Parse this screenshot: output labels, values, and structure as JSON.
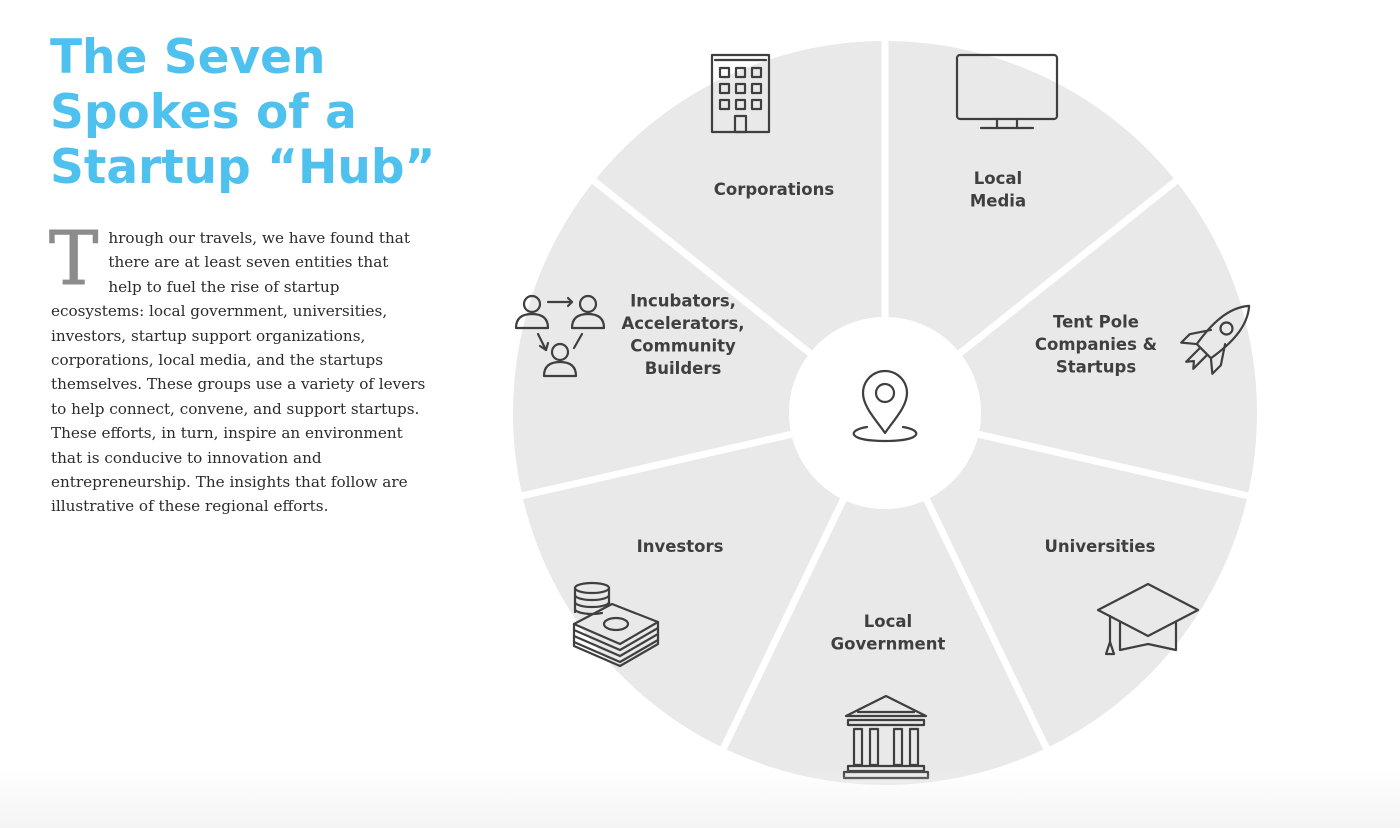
{
  "title": {
    "lines": [
      "The Seven",
      "Spokes of a",
      "Startup “Hub”"
    ]
  },
  "intro": {
    "dropcap": "T",
    "text": "hrough our travels, we have found that there are at least seven entities that help to fuel the rise of startup ecosystems: local government, universities, investors, startup support organizations, corporations, local media, and the startups themselves. These groups use a variety of levers to help connect, convene, and support startups. These efforts, in turn, inspire an environment that is conducive to innovation and entrepreneurship. The insights that follow are illustrative of these regional efforts."
  },
  "wheel": {
    "segment_color": "#e9e9e9",
    "hub_icon": "location-pin-icon",
    "segments": [
      {
        "label_lines": [
          "Corporations"
        ],
        "icon": "office-building-icon"
      },
      {
        "label_lines": [
          "Local",
          "Media"
        ],
        "icon": "television-icon"
      },
      {
        "label_lines": [
          "Tent Pole",
          "Companies &",
          "Startups"
        ],
        "icon": "rocket-icon"
      },
      {
        "label_lines": [
          "Universities"
        ],
        "icon": "graduation-cap-icon"
      },
      {
        "label_lines": [
          "Local",
          "Government"
        ],
        "icon": "government-building-icon"
      },
      {
        "label_lines": [
          "Investors"
        ],
        "icon": "money-stack-icon"
      },
      {
        "label_lines": [
          "Incubators,",
          "Accelerators,",
          "Community",
          "Builders"
        ],
        "icon": "community-people-icon"
      }
    ]
  }
}
